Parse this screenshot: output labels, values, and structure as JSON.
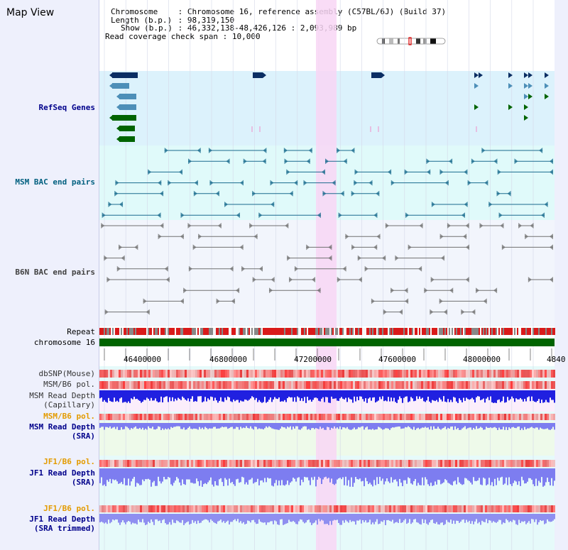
{
  "app": {
    "title": "Map View"
  },
  "info": {
    "chromosome_label": "Chromosome",
    "chromosome_value": "Chromosome 16, reference assembly (C57BL/6J) (Build 37)",
    "length_label": "Length (b.p.)",
    "length_value": "98,319,150",
    "show_label": "Show (b.p.)",
    "show_value": "46,332,138-48,426,126 : 2,093,989 bp",
    "coverage_label": "Read coverage check span",
    "coverage_value": "10,000"
  },
  "tracks": {
    "refseq": "RefSeq Genes",
    "msm_bac": "MSM BAC end pairs",
    "b6n_bac": "B6N BAC end pairs",
    "repeat": "Repeat",
    "chromosome": "chromosome 16",
    "dbsnp": "dbSNP(Mouse)",
    "msm_b6_pol_1": "MSM/B6 pol.",
    "msm_depth_cap_1": "MSM Read Depth",
    "msm_depth_cap_2": "(Capillary)",
    "msm_b6_pol_2": "MSM/B6 pol.",
    "msm_depth_sra_1": "MSM Read Depth",
    "msm_depth_sra_2": "(SRA)",
    "jf1_b6_pol_1": "JF1/B6 pol.",
    "jf1_depth_sra_1": "JF1 Read Depth",
    "jf1_depth_sra_2": "(SRA)",
    "jf1_b6_pol_2": "JF1/B6 pol.",
    "jf1_depth_trim_1": "JF1 Read Depth",
    "jf1_depth_trim_2": "(SRA trimmed)"
  },
  "axis": {
    "ticks": [
      "46400000",
      "46800000",
      "47200000",
      "47600000",
      "48000000",
      "4840"
    ]
  },
  "colors": {
    "refseq_bg": "#dcf2fc",
    "msm_bac_bg": "#e0fafa",
    "b6n_bac_bg": "#f2f5fc",
    "highlight": "#f8d6f4",
    "refseq_label": "#00008b",
    "msm_bac_label": "#005f7f",
    "b6n_label": "#404040",
    "pol_label_orange": "#e39b00",
    "depth_label_blue": "#00008b",
    "chromosome_bar": "#006400",
    "gene_dark": "#0b2e63",
    "gene_mid": "#4d8fb8",
    "gene_green": "#006400",
    "depth_blue": "#2020e0",
    "depth_light": "#7d7df0"
  }
}
